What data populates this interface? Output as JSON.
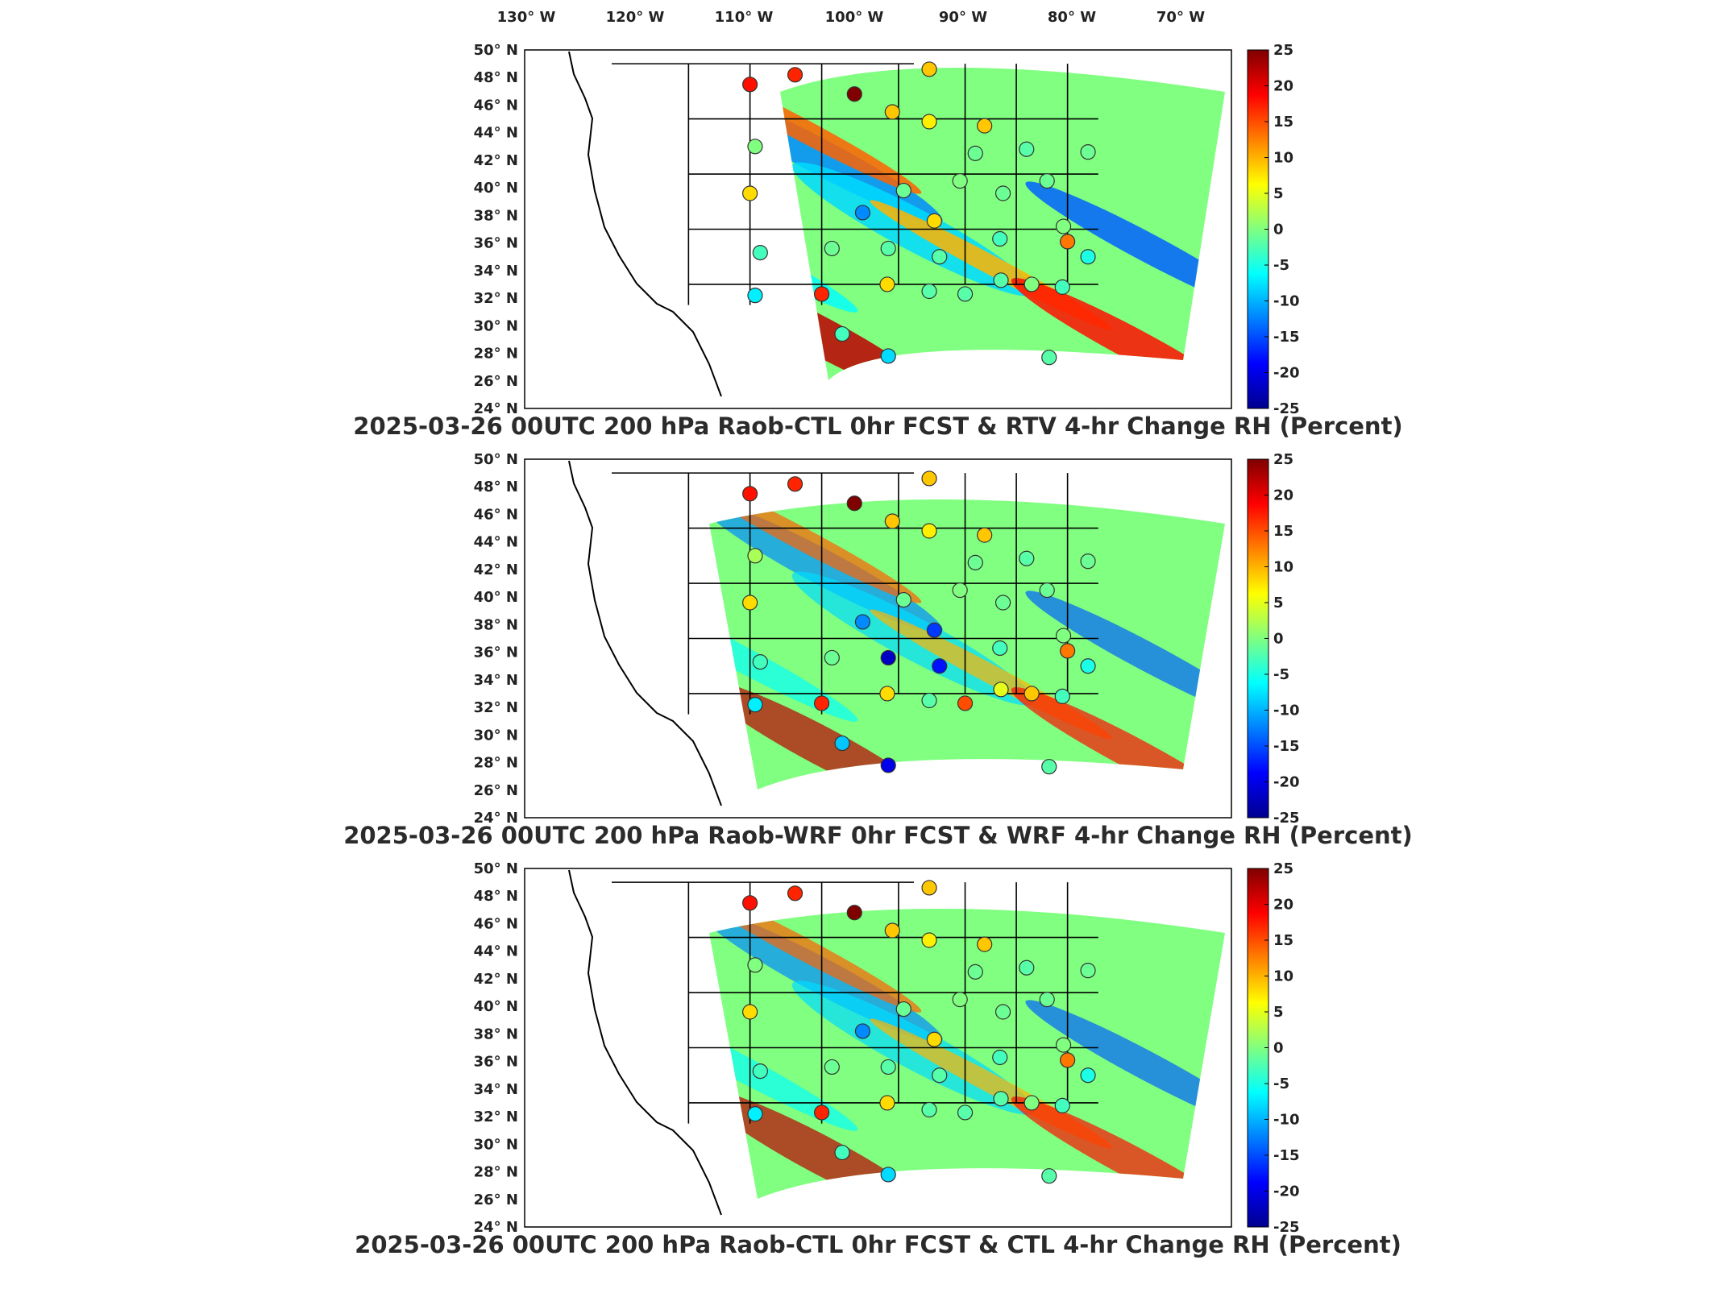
{
  "lon_axis": {
    "labels": [
      "130° W",
      "120° W",
      "110° W",
      "100° W",
      "90° W",
      "80° W",
      "70° W"
    ]
  },
  "lat_axis": {
    "labels": [
      "50° N",
      "48° N",
      "46° N",
      "44° N",
      "42° N",
      "40° N",
      "38° N",
      "36° N",
      "34° N",
      "32° N",
      "30° N",
      "28° N",
      "26° N",
      "24° N"
    ]
  },
  "colorbar": {
    "ticks": [
      "25",
      "20",
      "15",
      "10",
      "5",
      "0",
      "-5",
      "-10",
      "-15",
      "-20",
      "-25"
    ],
    "min": -25,
    "max": 25,
    "colormap": [
      "#00008f",
      "#0000ff",
      "#0080ff",
      "#00ffff",
      "#80ff80",
      "#ffff00",
      "#ff8000",
      "#ff0000",
      "#800000"
    ]
  },
  "chart_data": [
    {
      "type": "heatmap",
      "title": "2025-03-26 00UTC 200 hPa Raob-CTL 0hr FCST & RTV 4-hr Change RH (Percent)",
      "xlim": [
        -133,
        -64
      ],
      "ylim": [
        24,
        50
      ],
      "clim": [
        -25,
        25
      ],
      "points": [
        {
          "lon": -111.0,
          "lat": 47.5,
          "value": 18
        },
        {
          "lon": -106.6,
          "lat": 48.2,
          "value": 17
        },
        {
          "lon": -100.8,
          "lat": 46.8,
          "value": 25
        },
        {
          "lon": -97.1,
          "lat": 45.5,
          "value": 9
        },
        {
          "lon": -93.5,
          "lat": 48.6,
          "value": 9
        },
        {
          "lon": -93.5,
          "lat": 44.8,
          "value": 7
        },
        {
          "lon": -88.1,
          "lat": 44.5,
          "value": 9
        },
        {
          "lon": -110.5,
          "lat": 43.0,
          "value": 0
        },
        {
          "lon": -89.0,
          "lat": 42.5,
          "value": -1
        },
        {
          "lon": -84.0,
          "lat": 42.8,
          "value": -2
        },
        {
          "lon": -78.0,
          "lat": 42.6,
          "value": -1
        },
        {
          "lon": -111.0,
          "lat": 39.6,
          "value": 8
        },
        {
          "lon": -96.0,
          "lat": 39.8,
          "value": -1
        },
        {
          "lon": -90.5,
          "lat": 40.5,
          "value": 0
        },
        {
          "lon": -86.3,
          "lat": 39.6,
          "value": -1
        },
        {
          "lon": -82.0,
          "lat": 40.5,
          "value": -1
        },
        {
          "lon": -100.0,
          "lat": 38.2,
          "value": -12
        },
        {
          "lon": -93.0,
          "lat": 37.6,
          "value": 8
        },
        {
          "lon": -80.4,
          "lat": 37.2,
          "value": 0
        },
        {
          "lon": -110.0,
          "lat": 35.3,
          "value": -3
        },
        {
          "lon": -103.0,
          "lat": 35.6,
          "value": -1
        },
        {
          "lon": -97.5,
          "lat": 35.6,
          "value": -2
        },
        {
          "lon": -92.5,
          "lat": 35.0,
          "value": -2
        },
        {
          "lon": -86.6,
          "lat": 36.3,
          "value": -3
        },
        {
          "lon": -80.0,
          "lat": 36.1,
          "value": 13
        },
        {
          "lon": -78.0,
          "lat": 35.0,
          "value": -5
        },
        {
          "lon": -104.0,
          "lat": 32.3,
          "value": 17
        },
        {
          "lon": -97.6,
          "lat": 33.0,
          "value": 8
        },
        {
          "lon": -93.5,
          "lat": 32.5,
          "value": -2
        },
        {
          "lon": -90.0,
          "lat": 32.3,
          "value": -2
        },
        {
          "lon": -86.5,
          "lat": 33.3,
          "value": -2
        },
        {
          "lon": -83.5,
          "lat": 33.0,
          "value": 0
        },
        {
          "lon": -80.5,
          "lat": 32.8,
          "value": -3
        },
        {
          "lon": -110.5,
          "lat": 32.2,
          "value": -7
        },
        {
          "lon": -102.0,
          "lat": 29.4,
          "value": -3
        },
        {
          "lon": -97.5,
          "lat": 27.8,
          "value": -8
        },
        {
          "lon": -81.8,
          "lat": 27.7,
          "value": -2
        }
      ]
    },
    {
      "type": "heatmap",
      "title": "2025-03-26 00UTC 200 hPa Raob-WRF 0hr FCST & WRF 4-hr Change RH (Percent)",
      "xlim": [
        -133,
        -64
      ],
      "ylim": [
        24,
        50
      ],
      "clim": [
        -25,
        25
      ],
      "points": [
        {
          "lon": -111.0,
          "lat": 47.5,
          "value": 18
        },
        {
          "lon": -106.6,
          "lat": 48.2,
          "value": 17
        },
        {
          "lon": -100.8,
          "lat": 46.8,
          "value": 25
        },
        {
          "lon": -97.1,
          "lat": 45.5,
          "value": 9
        },
        {
          "lon": -93.5,
          "lat": 48.6,
          "value": 9
        },
        {
          "lon": -93.5,
          "lat": 44.8,
          "value": 7
        },
        {
          "lon": -88.1,
          "lat": 44.5,
          "value": 9
        },
        {
          "lon": -110.5,
          "lat": 43.0,
          "value": 2
        },
        {
          "lon": -89.0,
          "lat": 42.5,
          "value": -1
        },
        {
          "lon": -84.0,
          "lat": 42.8,
          "value": -2
        },
        {
          "lon": -78.0,
          "lat": 42.6,
          "value": -1
        },
        {
          "lon": -111.0,
          "lat": 39.6,
          "value": 8
        },
        {
          "lon": -96.0,
          "lat": 39.8,
          "value": -1
        },
        {
          "lon": -90.5,
          "lat": 40.5,
          "value": 0
        },
        {
          "lon": -86.3,
          "lat": 39.6,
          "value": -1
        },
        {
          "lon": -82.0,
          "lat": 40.5,
          "value": -1
        },
        {
          "lon": -100.0,
          "lat": 38.2,
          "value": -12
        },
        {
          "lon": -93.0,
          "lat": 37.6,
          "value": -16
        },
        {
          "lon": -80.4,
          "lat": 37.2,
          "value": 0
        },
        {
          "lon": -110.0,
          "lat": 35.3,
          "value": -3
        },
        {
          "lon": -103.0,
          "lat": 35.6,
          "value": -1
        },
        {
          "lon": -97.5,
          "lat": 35.6,
          "value": -22
        },
        {
          "lon": -92.5,
          "lat": 35.0,
          "value": -18
        },
        {
          "lon": -86.6,
          "lat": 36.3,
          "value": -3
        },
        {
          "lon": -80.0,
          "lat": 36.1,
          "value": 13
        },
        {
          "lon": -78.0,
          "lat": 35.0,
          "value": -5
        },
        {
          "lon": -104.0,
          "lat": 32.3,
          "value": 17
        },
        {
          "lon": -97.6,
          "lat": 33.0,
          "value": 8
        },
        {
          "lon": -93.5,
          "lat": 32.5,
          "value": -2
        },
        {
          "lon": -90.0,
          "lat": 32.3,
          "value": 15
        },
        {
          "lon": -86.5,
          "lat": 33.3,
          "value": 5
        },
        {
          "lon": -83.5,
          "lat": 33.0,
          "value": 9
        },
        {
          "lon": -80.5,
          "lat": 32.8,
          "value": -3
        },
        {
          "lon": -110.5,
          "lat": 32.2,
          "value": -7
        },
        {
          "lon": -102.0,
          "lat": 29.4,
          "value": -9
        },
        {
          "lon": -97.5,
          "lat": 27.8,
          "value": -20
        },
        {
          "lon": -81.8,
          "lat": 27.7,
          "value": -2
        }
      ]
    },
    {
      "type": "heatmap",
      "title": "2025-03-26 00UTC 200 hPa Raob-CTL 0hr FCST & CTL 4-hr Change RH (Percent)",
      "xlim": [
        -133,
        -64
      ],
      "ylim": [
        24,
        50
      ],
      "clim": [
        -25,
        25
      ],
      "points": [
        {
          "lon": -111.0,
          "lat": 47.5,
          "value": 18
        },
        {
          "lon": -106.6,
          "lat": 48.2,
          "value": 17
        },
        {
          "lon": -100.8,
          "lat": 46.8,
          "value": 25
        },
        {
          "lon": -97.1,
          "lat": 45.5,
          "value": 9
        },
        {
          "lon": -93.5,
          "lat": 48.6,
          "value": 9
        },
        {
          "lon": -93.5,
          "lat": 44.8,
          "value": 7
        },
        {
          "lon": -88.1,
          "lat": 44.5,
          "value": 9
        },
        {
          "lon": -110.5,
          "lat": 43.0,
          "value": 0
        },
        {
          "lon": -89.0,
          "lat": 42.5,
          "value": -1
        },
        {
          "lon": -84.0,
          "lat": 42.8,
          "value": -2
        },
        {
          "lon": -78.0,
          "lat": 42.6,
          "value": -1
        },
        {
          "lon": -111.0,
          "lat": 39.6,
          "value": 8
        },
        {
          "lon": -96.0,
          "lat": 39.8,
          "value": -1
        },
        {
          "lon": -90.5,
          "lat": 40.5,
          "value": 0
        },
        {
          "lon": -86.3,
          "lat": 39.6,
          "value": -1
        },
        {
          "lon": -82.0,
          "lat": 40.5,
          "value": -1
        },
        {
          "lon": -100.0,
          "lat": 38.2,
          "value": -12
        },
        {
          "lon": -93.0,
          "lat": 37.6,
          "value": 8
        },
        {
          "lon": -80.4,
          "lat": 37.2,
          "value": 0
        },
        {
          "lon": -110.0,
          "lat": 35.3,
          "value": -3
        },
        {
          "lon": -103.0,
          "lat": 35.6,
          "value": -1
        },
        {
          "lon": -97.5,
          "lat": 35.6,
          "value": -2
        },
        {
          "lon": -92.5,
          "lat": 35.0,
          "value": -2
        },
        {
          "lon": -86.6,
          "lat": 36.3,
          "value": -3
        },
        {
          "lon": -80.0,
          "lat": 36.1,
          "value": 13
        },
        {
          "lon": -78.0,
          "lat": 35.0,
          "value": -5
        },
        {
          "lon": -104.0,
          "lat": 32.3,
          "value": 17
        },
        {
          "lon": -97.6,
          "lat": 33.0,
          "value": 8
        },
        {
          "lon": -93.5,
          "lat": 32.5,
          "value": -2
        },
        {
          "lon": -90.0,
          "lat": 32.3,
          "value": -2
        },
        {
          "lon": -86.5,
          "lat": 33.3,
          "value": -2
        },
        {
          "lon": -83.5,
          "lat": 33.0,
          "value": 0
        },
        {
          "lon": -80.5,
          "lat": 32.8,
          "value": -3
        },
        {
          "lon": -110.5,
          "lat": 32.2,
          "value": -7
        },
        {
          "lon": -102.0,
          "lat": 29.4,
          "value": -3
        },
        {
          "lon": -97.5,
          "lat": 27.8,
          "value": -8
        },
        {
          "lon": -81.8,
          "lat": 27.7,
          "value": -2
        }
      ]
    }
  ]
}
